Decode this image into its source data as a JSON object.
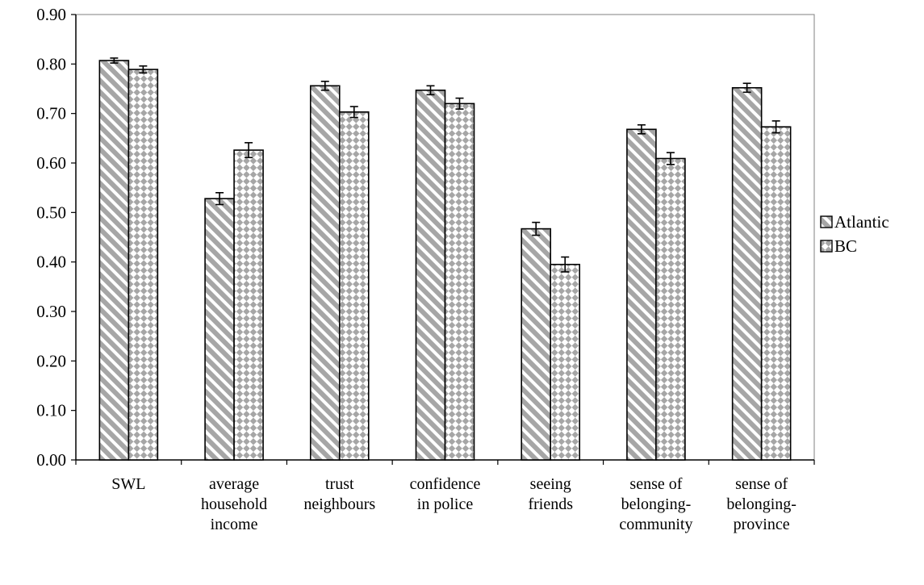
{
  "chart_data": {
    "type": "bar",
    "title": "",
    "xlabel": "",
    "ylabel": "",
    "ylim": [
      0,
      0.9
    ],
    "yticks": [
      "0.00",
      "0.10",
      "0.20",
      "0.30",
      "0.40",
      "0.50",
      "0.60",
      "0.70",
      "0.80",
      "0.90"
    ],
    "categories": [
      "SWL",
      "average household income",
      "trust neighbours",
      "confidence in police",
      "seeing friends",
      "sense of belonging-community",
      "sense of belonging-province"
    ],
    "category_lines": [
      [
        "SWL"
      ],
      [
        "average",
        "household",
        "income"
      ],
      [
        "trust",
        "neighbours"
      ],
      [
        "confidence",
        "in police"
      ],
      [
        "seeing",
        "friends"
      ],
      [
        "sense of",
        "belonging-",
        "community"
      ],
      [
        "sense of",
        "belonging-",
        "province"
      ]
    ],
    "series": [
      {
        "name": "Atlantic",
        "pattern": "diagonal-stripes",
        "values": [
          0.807,
          0.528,
          0.756,
          0.747,
          0.467,
          0.668,
          0.752
        ],
        "errors": [
          0.005,
          0.012,
          0.009,
          0.009,
          0.013,
          0.009,
          0.009
        ]
      },
      {
        "name": "BC",
        "pattern": "checker-diamond",
        "values": [
          0.789,
          0.626,
          0.703,
          0.72,
          0.395,
          0.609,
          0.673
        ],
        "errors": [
          0.007,
          0.015,
          0.011,
          0.011,
          0.015,
          0.012,
          0.012
        ]
      }
    ],
    "legend": {
      "position": "right"
    },
    "grid": false
  },
  "colors": {
    "bar_fill": "#a6a6a6",
    "bar_pattern": "#ffffff",
    "border": "#000000"
  }
}
